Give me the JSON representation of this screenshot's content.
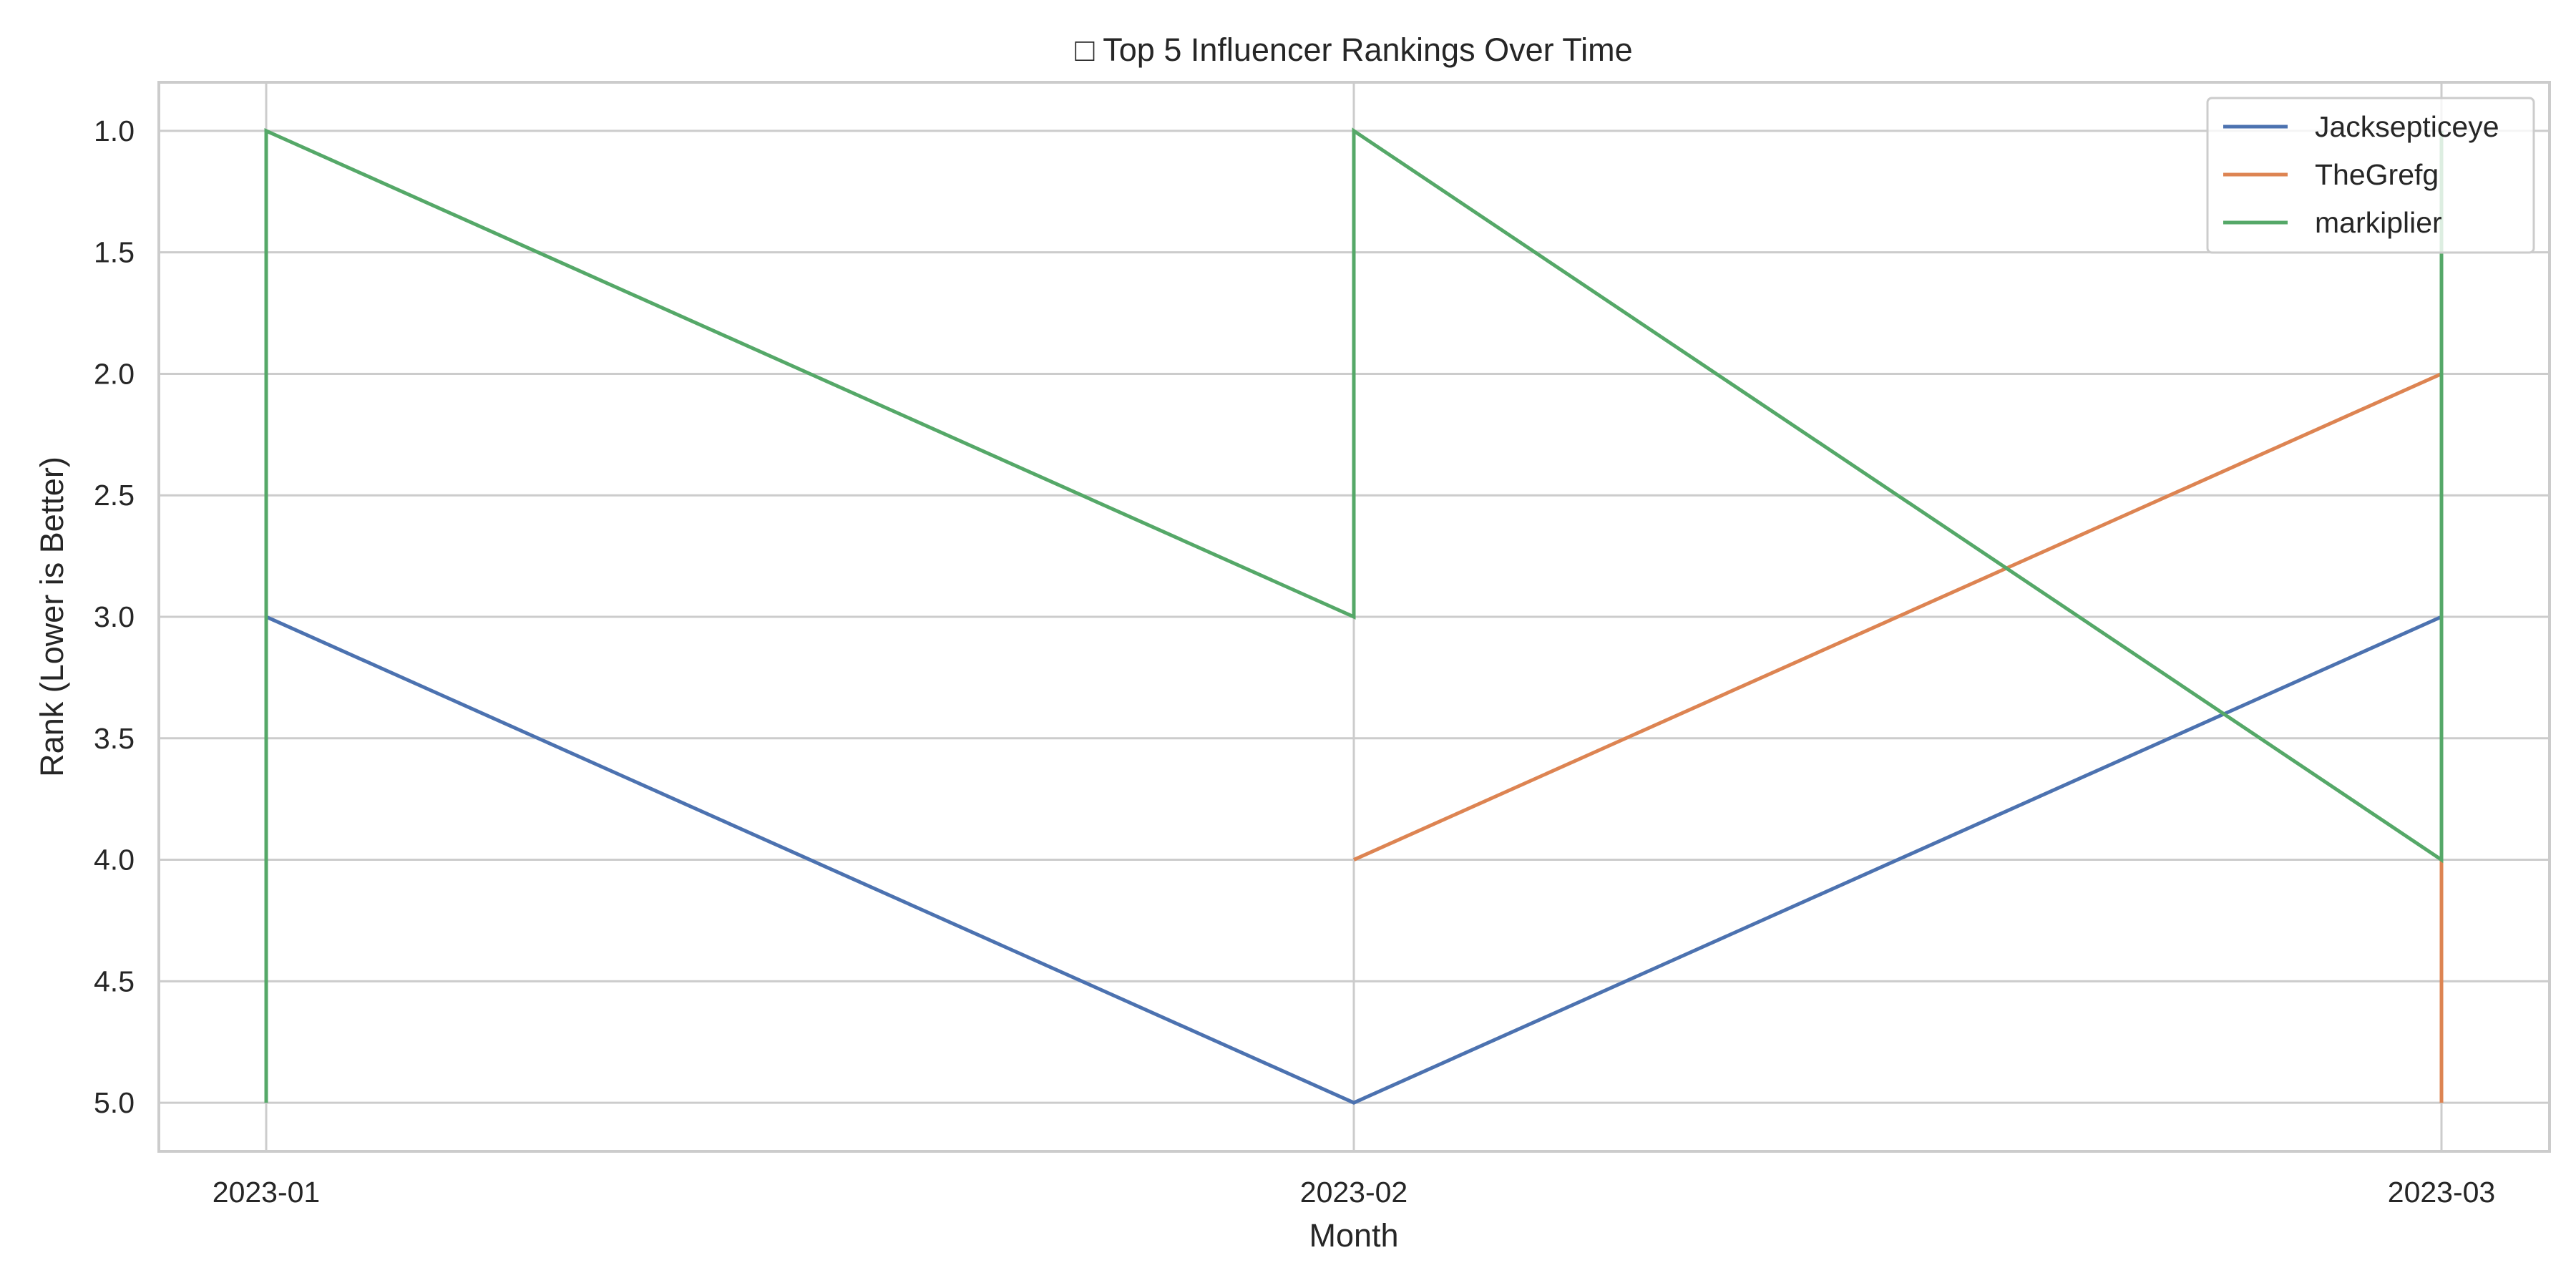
{
  "chart_data": {
    "type": "line",
    "title": "□ Top 5 Influencer Rankings Over Time",
    "xlabel": "Month",
    "ylabel": "Rank (Lower is Better)",
    "x_categories": [
      "2023-01",
      "2023-02",
      "2023-03"
    ],
    "y_ticks": [
      "1.0",
      "1.5",
      "2.0",
      "2.5",
      "3.0",
      "3.5",
      "4.0",
      "4.5",
      "5.0"
    ],
    "ylim": [
      5.2,
      0.8
    ],
    "y_inverted": true,
    "grid": true,
    "legend_position": "top-right",
    "series": [
      {
        "name": "Jacksepticeye",
        "color": "#4c72b0",
        "points": [
          {
            "x": "2023-01",
            "y": 3
          },
          {
            "x": "2023-02",
            "y": 5
          },
          {
            "x": "2023-03",
            "y": 3
          }
        ]
      },
      {
        "name": "TheGrefg",
        "color": "#dd8452",
        "points": [
          {
            "x": "2023-02",
            "y": 4
          },
          {
            "x": "2023-03",
            "y": 2
          },
          {
            "x": "2023-03",
            "y": 4
          },
          {
            "x": "2023-03",
            "y": 5
          }
        ]
      },
      {
        "name": "markiplier",
        "color": "#55a868",
        "points": [
          {
            "x": "2023-01",
            "y": 5
          },
          {
            "x": "2023-01",
            "y": 1
          },
          {
            "x": "2023-02",
            "y": 3
          },
          {
            "x": "2023-02",
            "y": 1
          },
          {
            "x": "2023-03",
            "y": 4
          },
          {
            "x": "2023-03",
            "y": 1
          }
        ]
      }
    ]
  }
}
